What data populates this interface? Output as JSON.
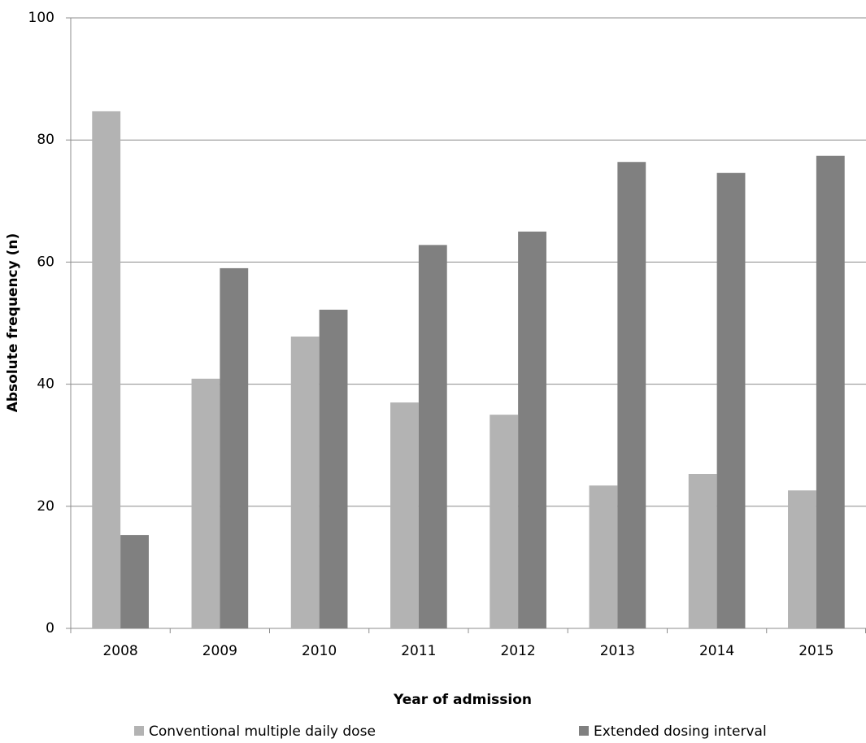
{
  "chart_data": {
    "type": "bar",
    "x_label": "Year of admission",
    "y_label": "Absolute frequency (n)",
    "categories": [
      "2008",
      "2009",
      "2010",
      "2011",
      "2012",
      "2013",
      "2014",
      "2015"
    ],
    "series": [
      {
        "name": "Conventional multiple daily dose",
        "color": "#b3b3b3",
        "values": [
          84.7,
          40.9,
          47.8,
          37.0,
          35.0,
          23.4,
          25.3,
          22.6
        ]
      },
      {
        "name": "Extended dosing interval",
        "color": "#808080",
        "values": [
          15.3,
          59.0,
          52.2,
          62.8,
          65.0,
          76.4,
          74.6,
          77.4
        ]
      }
    ],
    "ylim": [
      0,
      100
    ],
    "yticks": [
      0,
      20,
      40,
      60,
      80,
      100
    ],
    "grid": true,
    "legend": "bottom"
  }
}
